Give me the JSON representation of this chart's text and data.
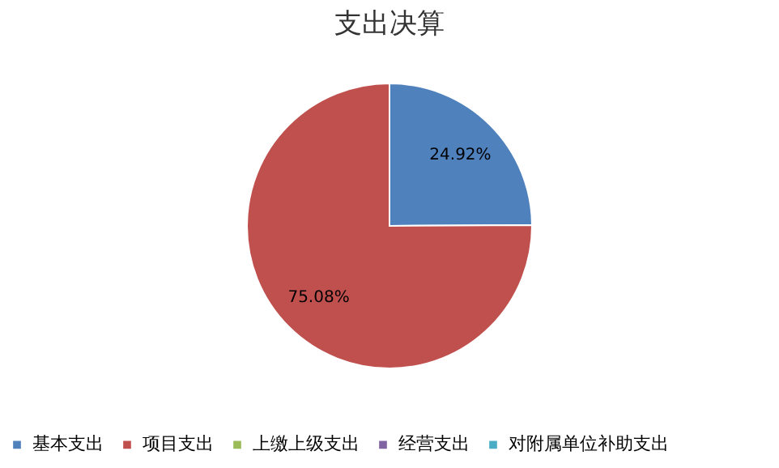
{
  "chart_data": {
    "type": "pie",
    "title": "支出决算",
    "categories": [
      "基本支出",
      "项目支出",
      "上缴上级支出",
      "经营支出",
      "对附属单位补助支出"
    ],
    "values": [
      24.92,
      75.08,
      0,
      0,
      0
    ],
    "colors": [
      "#4f81bd",
      "#c0504d",
      "#9bbb59",
      "#8064a2",
      "#4bacc6"
    ],
    "value_labels": [
      "24.92%",
      "75.08%",
      null,
      null,
      null
    ],
    "legend": "bottom"
  }
}
